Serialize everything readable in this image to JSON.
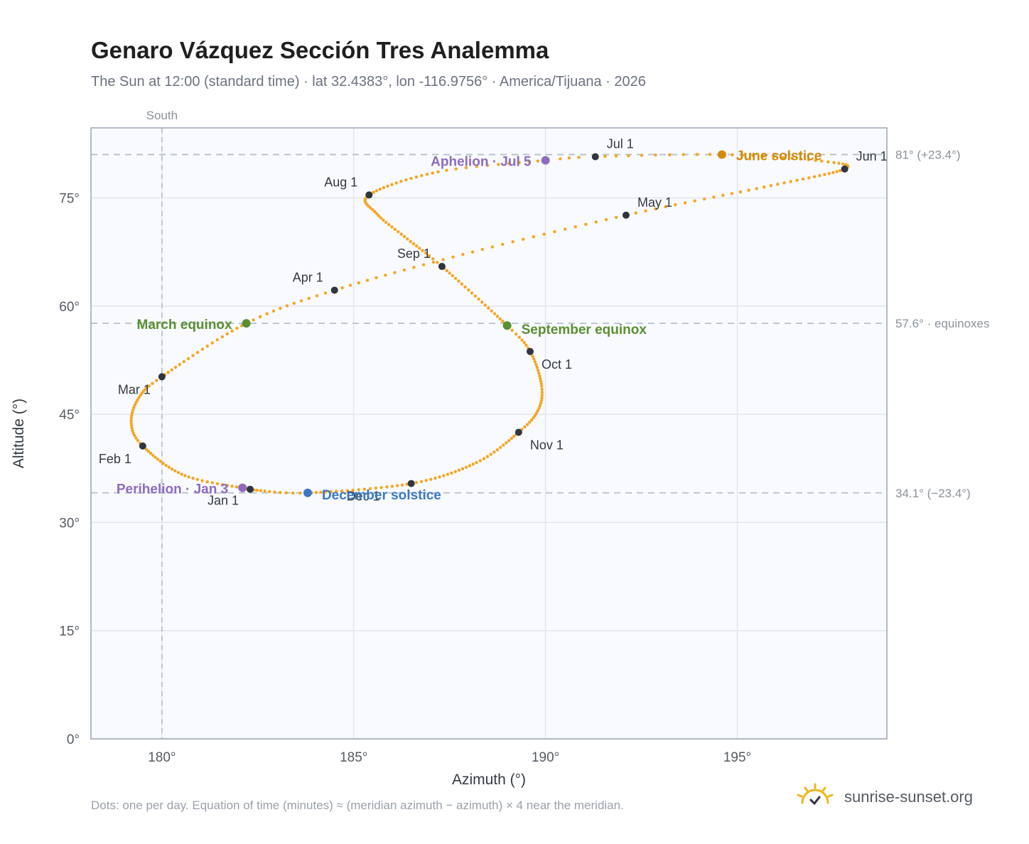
{
  "title": "Genaro Vázquez Sección Tres Analemma",
  "subtitle": "The Sun at 12:00 (standard time) · lat 32.4383°, lon -116.9756° · America/Tijuana · 2026",
  "footnote": "Dots: one per day. Equation of time (minutes) ≈ (meridian azimuth − azimuth) × 4 near the meridian.",
  "brand": {
    "name": "sunrise-sunset.org",
    "icon": "sun-logo-icon"
  },
  "colors": {
    "path": "#f5a623",
    "month_marker": "#2f3640",
    "equinox": "#5a8f32",
    "june_solstice": "#d48a06",
    "december_solstice": "#3b78c2",
    "apsis": "#8e6bbf",
    "plot_bg": "#f8fafd",
    "grid": "#e1e6ee",
    "ref_line": "#b6c0cc"
  },
  "chart_data": {
    "type": "scatter",
    "title": "Genaro Vázquez Sección Tres Analemma",
    "xlabel": "Azimuth (°)",
    "ylabel": "Altitude (°)",
    "xlim": [
      178.15,
      198.9
    ],
    "ylim": [
      0,
      84.7
    ],
    "x_ticks": [
      180,
      185,
      190,
      195
    ],
    "x_tick_labels": [
      "180°",
      "185°",
      "190°",
      "195°"
    ],
    "y_ticks": [
      0,
      15,
      30,
      45,
      60,
      75
    ],
    "y_tick_labels": [
      "0°",
      "15°",
      "30°",
      "45°",
      "60°",
      "75°"
    ],
    "grid": true,
    "meridian": {
      "azimuth": 180,
      "label": "South"
    },
    "reference_lines": [
      {
        "altitude": 81.0,
        "label": "81° (+23.4°)"
      },
      {
        "altitude": 57.6,
        "label": "57.6° · equinoxes"
      },
      {
        "altitude": 34.1,
        "label": "34.1° (−23.4°)"
      }
    ],
    "month_markers": [
      {
        "label": "Jan 1",
        "azimuth": 182.3,
        "altitude": 34.6
      },
      {
        "label": "Feb 1",
        "azimuth": 179.5,
        "altitude": 40.6
      },
      {
        "label": "Mar 1",
        "azimuth": 180.0,
        "altitude": 50.2
      },
      {
        "label": "Apr 1",
        "azimuth": 184.5,
        "altitude": 62.2
      },
      {
        "label": "May 1",
        "azimuth": 192.1,
        "altitude": 72.6
      },
      {
        "label": "Jun 1",
        "azimuth": 197.8,
        "altitude": 79.0
      },
      {
        "label": "Jul 1",
        "azimuth": 191.3,
        "altitude": 80.7
      },
      {
        "label": "Aug 1",
        "azimuth": 185.4,
        "altitude": 75.4
      },
      {
        "label": "Sep 1",
        "azimuth": 187.3,
        "altitude": 65.5
      },
      {
        "label": "Oct 1",
        "azimuth": 189.6,
        "altitude": 53.7
      },
      {
        "label": "Nov 1",
        "azimuth": 189.3,
        "altitude": 42.5
      },
      {
        "label": "Dec 1",
        "azimuth": 186.5,
        "altitude": 35.4
      }
    ],
    "events": [
      {
        "label": "March equinox",
        "azimuth": 182.2,
        "altitude": 57.6,
        "kind": "equinox"
      },
      {
        "label": "June solstice",
        "azimuth": 194.6,
        "altitude": 81.0,
        "kind": "june_solstice"
      },
      {
        "label": "September equinox",
        "azimuth": 189.0,
        "altitude": 57.3,
        "kind": "equinox"
      },
      {
        "label": "December solstice",
        "azimuth": 183.8,
        "altitude": 34.1,
        "kind": "december_solstice"
      },
      {
        "label": "Perihelion · Jan 3",
        "azimuth": 182.1,
        "altitude": 34.8,
        "kind": "apsis"
      },
      {
        "label": "Aphelion · Jul 5",
        "azimuth": 190.0,
        "altitude": 80.2,
        "kind": "apsis"
      }
    ],
    "daily_path_anchors": [
      {
        "day": 0,
        "azimuth": 182.3,
        "altitude": 34.6
      },
      {
        "day": 15,
        "azimuth": 180.6,
        "altitude": 36.5
      },
      {
        "day": 31,
        "azimuth": 179.5,
        "altitude": 40.6
      },
      {
        "day": 40,
        "azimuth": 179.2,
        "altitude": 43.8
      },
      {
        "day": 50,
        "azimuth": 179.4,
        "altitude": 47.3
      },
      {
        "day": 59,
        "azimuth": 180.0,
        "altitude": 50.2
      },
      {
        "day": 78,
        "azimuth": 182.2,
        "altitude": 57.6
      },
      {
        "day": 90,
        "azimuth": 184.5,
        "altitude": 62.2
      },
      {
        "day": 105,
        "azimuth": 188.1,
        "altitude": 67.5
      },
      {
        "day": 120,
        "azimuth": 192.1,
        "altitude": 72.6
      },
      {
        "day": 135,
        "azimuth": 195.7,
        "altitude": 76.5
      },
      {
        "day": 151,
        "azimuth": 197.8,
        "altitude": 79.0
      },
      {
        "day": 160,
        "azimuth": 197.2,
        "altitude": 80.1
      },
      {
        "day": 171,
        "azimuth": 194.6,
        "altitude": 81.0
      },
      {
        "day": 181,
        "azimuth": 191.3,
        "altitude": 80.7
      },
      {
        "day": 185,
        "azimuth": 190.0,
        "altitude": 80.2
      },
      {
        "day": 196,
        "azimuth": 187.2,
        "altitude": 78.6
      },
      {
        "day": 212,
        "azimuth": 185.4,
        "altitude": 75.4
      },
      {
        "day": 222,
        "azimuth": 185.6,
        "altitude": 72.8
      },
      {
        "day": 233,
        "azimuth": 186.4,
        "altitude": 69.3
      },
      {
        "day": 243,
        "azimuth": 187.3,
        "altitude": 65.5
      },
      {
        "day": 265,
        "azimuth": 189.0,
        "altitude": 57.3
      },
      {
        "day": 273,
        "azimuth": 189.6,
        "altitude": 53.7
      },
      {
        "day": 286,
        "azimuth": 189.9,
        "altitude": 48.9
      },
      {
        "day": 295,
        "azimuth": 189.8,
        "altitude": 45.5
      },
      {
        "day": 304,
        "azimuth": 189.3,
        "altitude": 42.5
      },
      {
        "day": 318,
        "azimuth": 188.2,
        "altitude": 38.3
      },
      {
        "day": 334,
        "azimuth": 186.5,
        "altitude": 35.4
      },
      {
        "day": 354,
        "azimuth": 183.8,
        "altitude": 34.1
      },
      {
        "day": 364,
        "azimuth": 182.4,
        "altitude": 34.5
      }
    ]
  }
}
